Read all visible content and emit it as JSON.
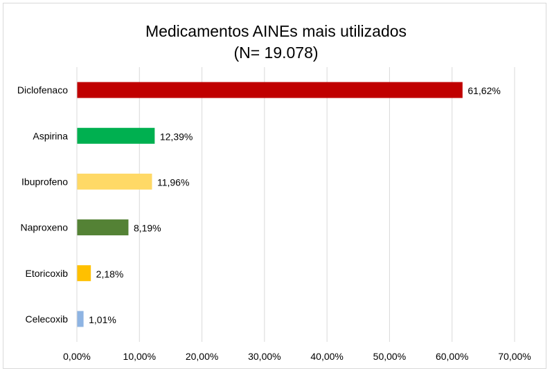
{
  "chart_data": {
    "type": "bar",
    "orientation": "horizontal",
    "title": "Medicamentos AINEs mais utilizados",
    "subtitle": "(N= 19.078)",
    "categories": [
      "Diclofenaco",
      "Aspirina",
      "Ibuprofeno",
      "Naproxeno",
      "Etoricoxib",
      "Celecoxib"
    ],
    "values": [
      61.62,
      12.39,
      11.96,
      8.19,
      2.18,
      1.01
    ],
    "data_labels": [
      "61,62%",
      "12,39%",
      "11,96%",
      "8,19%",
      "2,18%",
      "1,01%"
    ],
    "colors": [
      "#C00000",
      "#00B050",
      "#FFD966",
      "#548235",
      "#FFC000",
      "#8EB4E3"
    ],
    "xlim": [
      0,
      70
    ],
    "xticks": [
      0,
      10,
      20,
      30,
      40,
      50,
      60,
      70
    ],
    "xtick_labels": [
      "0,00%",
      "10,00%",
      "20,00%",
      "30,00%",
      "40,00%",
      "50,00%",
      "60,00%",
      "70,00%"
    ],
    "grid": "vertical",
    "gridColor": "#d9d9d9",
    "legend": "none",
    "xlabel": "",
    "ylabel": ""
  }
}
